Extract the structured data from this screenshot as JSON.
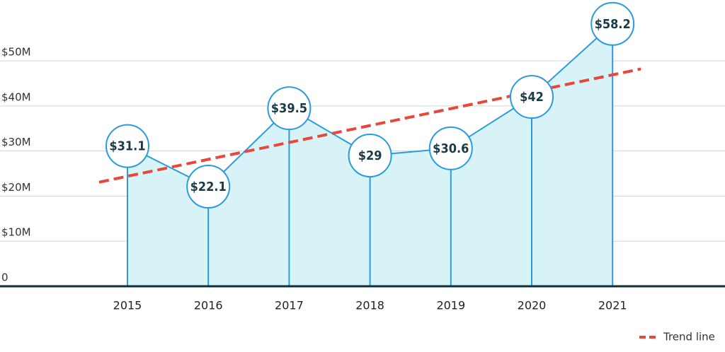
{
  "chart_data": {
    "type": "area-line",
    "categories": [
      "2015",
      "2016",
      "2017",
      "2018",
      "2019",
      "2020",
      "2021"
    ],
    "values": [
      31.1,
      22.1,
      39.5,
      29,
      30.6,
      42,
      58.2
    ],
    "value_labels": [
      "$31.1",
      "$22.1",
      "$39.5",
      "$29",
      "$30.6",
      "$42",
      "$58.2"
    ],
    "color": "#2b9be0",
    "fill": "#d8f3f8",
    "ylim": [
      0,
      63.5
    ],
    "yticks": [
      0,
      {
        "value": 10,
        "label": "$10M"
      },
      {
        "value": 20,
        "label": "$20M"
      },
      {
        "value": 30,
        "label": "$30M"
      },
      {
        "value": 40,
        "label": "$40M"
      },
      {
        "value": 50,
        "label": "$50M"
      }
    ],
    "grid": true,
    "trend": {
      "name": "Trend line",
      "color": "#e8473b",
      "values": [
        24.4,
        46.9
      ]
    },
    "legend": "bottom-right"
  }
}
